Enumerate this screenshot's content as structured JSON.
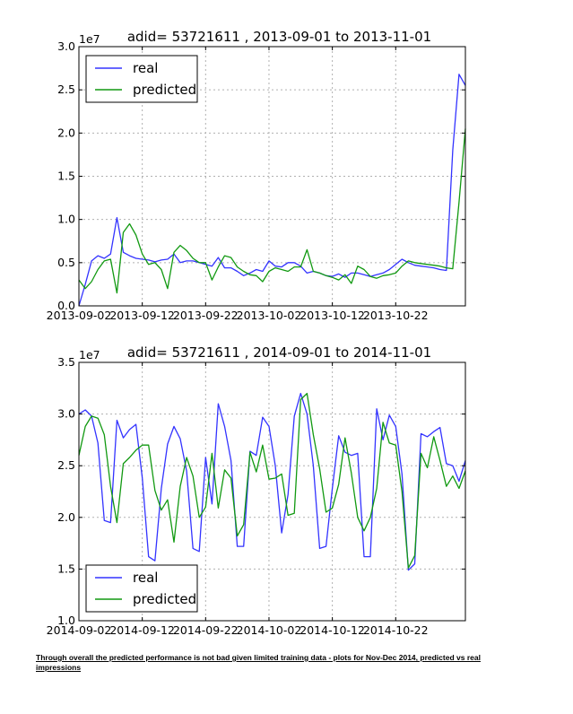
{
  "caption": "Through overall the predicted performance is not bad given limited training data - plots for Nov-Dec 2014, predicted vs real impressions",
  "colors": {
    "real": "#3333ff",
    "predicted": "#119911",
    "grid": "#b0b0b0"
  },
  "chart_data": [
    {
      "type": "line",
      "title": "adid= 53721611 , 2013-09-01 to 2013-11-01",
      "multiplier": "1e7",
      "ylim": [
        0.0,
        3.0
      ],
      "yticks": [
        "0.0",
        "0.5",
        "1.0",
        "1.5",
        "2.0",
        "2.5",
        "3.0"
      ],
      "xlim": [
        0,
        61
      ],
      "xticks": [
        {
          "x": 0,
          "label": "2013-09-02"
        },
        {
          "x": 10,
          "label": "2013-09-12"
        },
        {
          "x": 20,
          "label": "2013-09-22"
        },
        {
          "x": 30,
          "label": "2013-10-02"
        },
        {
          "x": 40,
          "label": "2013-10-12"
        },
        {
          "x": 50,
          "label": "2013-10-22"
        }
      ],
      "grid": true,
      "legend": "upper left",
      "series": [
        {
          "name": "real",
          "color": "#3333ff",
          "x": [
            0,
            1,
            2,
            3,
            4,
            5,
            6,
            7,
            8,
            9,
            10,
            11,
            12,
            13,
            14,
            15,
            16,
            17,
            18,
            19,
            20,
            21,
            22,
            23,
            24,
            25,
            26,
            27,
            28,
            29,
            30,
            31,
            32,
            33,
            34,
            35,
            36,
            37,
            38,
            39,
            40,
            41,
            42,
            43,
            44,
            45,
            46,
            47,
            48,
            49,
            50,
            51,
            52,
            53,
            54,
            55,
            56,
            57,
            58,
            59,
            60,
            61
          ],
          "values": [
            0.0,
            0.25,
            0.52,
            0.58,
            0.55,
            0.6,
            1.02,
            0.62,
            0.58,
            0.55,
            0.54,
            0.53,
            0.51,
            0.53,
            0.54,
            0.6,
            0.5,
            0.52,
            0.52,
            0.5,
            0.48,
            0.46,
            0.56,
            0.44,
            0.44,
            0.4,
            0.35,
            0.38,
            0.42,
            0.4,
            0.52,
            0.46,
            0.45,
            0.5,
            0.5,
            0.46,
            0.38,
            0.4,
            0.38,
            0.35,
            0.34,
            0.37,
            0.33,
            0.38,
            0.38,
            0.36,
            0.34,
            0.36,
            0.38,
            0.42,
            0.48,
            0.54,
            0.5,
            0.47,
            0.46,
            0.45,
            0.44,
            0.42,
            0.41,
            1.8,
            2.68,
            2.55
          ]
        },
        {
          "name": "predicted",
          "color": "#119911",
          "x": [
            0,
            1,
            2,
            3,
            4,
            5,
            6,
            7,
            8,
            9,
            10,
            11,
            12,
            13,
            14,
            15,
            16,
            17,
            18,
            19,
            20,
            21,
            22,
            23,
            24,
            25,
            26,
            27,
            28,
            29,
            30,
            31,
            32,
            33,
            34,
            35,
            36,
            37,
            38,
            39,
            40,
            41,
            42,
            43,
            44,
            45,
            46,
            47,
            48,
            49,
            50,
            51,
            52,
            53,
            54,
            55,
            56,
            57,
            58,
            59,
            60,
            61
          ],
          "values": [
            0.3,
            0.2,
            0.28,
            0.42,
            0.52,
            0.54,
            0.15,
            0.85,
            0.95,
            0.82,
            0.6,
            0.48,
            0.5,
            0.42,
            0.2,
            0.62,
            0.7,
            0.64,
            0.55,
            0.5,
            0.5,
            0.3,
            0.45,
            0.58,
            0.56,
            0.45,
            0.4,
            0.36,
            0.35,
            0.28,
            0.4,
            0.44,
            0.42,
            0.4,
            0.45,
            0.45,
            0.65,
            0.4,
            0.38,
            0.35,
            0.33,
            0.3,
            0.36,
            0.26,
            0.46,
            0.42,
            0.34,
            0.32,
            0.35,
            0.36,
            0.38,
            0.46,
            0.52,
            0.5,
            0.49,
            0.48,
            0.47,
            0.46,
            0.44,
            0.43,
            1.2,
            2.05
          ]
        }
      ]
    },
    {
      "type": "line",
      "title": "adid= 53721611 , 2014-09-01 to 2014-11-01",
      "multiplier": "1e7",
      "ylim": [
        1.0,
        3.5
      ],
      "yticks": [
        "1.0",
        "1.5",
        "2.0",
        "2.5",
        "3.0",
        "3.5"
      ],
      "xlim": [
        0,
        61
      ],
      "xticks": [
        {
          "x": 0,
          "label": "2014-09-02"
        },
        {
          "x": 10,
          "label": "2014-09-12"
        },
        {
          "x": 20,
          "label": "2014-09-22"
        },
        {
          "x": 30,
          "label": "2014-10-02"
        },
        {
          "x": 40,
          "label": "2014-10-12"
        },
        {
          "x": 50,
          "label": "2014-10-22"
        }
      ],
      "grid": true,
      "legend": "lower left",
      "series": [
        {
          "name": "real",
          "color": "#3333ff",
          "x": [
            0,
            1,
            2,
            3,
            4,
            5,
            6,
            7,
            8,
            9,
            10,
            11,
            12,
            13,
            14,
            15,
            16,
            17,
            18,
            19,
            20,
            21,
            22,
            23,
            24,
            25,
            26,
            27,
            28,
            29,
            30,
            31,
            32,
            33,
            34,
            35,
            36,
            37,
            38,
            39,
            40,
            41,
            42,
            43,
            44,
            45,
            46,
            47,
            48,
            49,
            50,
            51,
            52,
            53,
            54,
            55,
            56,
            57,
            58,
            59,
            60,
            61
          ],
          "values": [
            3.0,
            3.04,
            2.98,
            2.72,
            1.97,
            1.95,
            2.94,
            2.77,
            2.85,
            2.9,
            2.38,
            1.62,
            1.58,
            2.28,
            2.71,
            2.88,
            2.76,
            2.45,
            1.7,
            1.67,
            2.58,
            2.13,
            3.1,
            2.88,
            2.55,
            1.72,
            1.72,
            2.64,
            2.6,
            2.97,
            2.88,
            2.5,
            1.85,
            2.22,
            2.98,
            3.2,
            3.0,
            2.5,
            1.7,
            1.72,
            2.28,
            2.79,
            2.63,
            2.6,
            2.62,
            1.62,
            1.62,
            3.05,
            2.75,
            2.99,
            2.88,
            2.42,
            1.49,
            1.55,
            2.81,
            2.78,
            2.83,
            2.87,
            2.52,
            2.5,
            2.35,
            2.55
          ]
        },
        {
          "name": "predicted",
          "color": "#119911",
          "x": [
            0,
            1,
            2,
            3,
            4,
            5,
            6,
            7,
            8,
            9,
            10,
            11,
            12,
            13,
            14,
            15,
            16,
            17,
            18,
            19,
            20,
            21,
            22,
            23,
            24,
            25,
            26,
            27,
            28,
            29,
            30,
            31,
            32,
            33,
            34,
            35,
            36,
            37,
            38,
            39,
            40,
            41,
            42,
            43,
            44,
            45,
            46,
            47,
            48,
            49,
            50,
            51,
            52,
            53,
            54,
            55,
            56,
            57,
            58,
            59,
            60,
            61
          ],
          "values": [
            2.6,
            2.88,
            2.98,
            2.96,
            2.8,
            2.3,
            1.95,
            2.52,
            2.58,
            2.65,
            2.7,
            2.7,
            2.26,
            2.07,
            2.17,
            1.76,
            2.3,
            2.58,
            2.4,
            2.0,
            2.1,
            2.62,
            2.09,
            2.46,
            2.38,
            1.82,
            1.93,
            2.63,
            2.44,
            2.7,
            2.37,
            2.38,
            2.42,
            2.02,
            2.04,
            3.14,
            3.2,
            2.8,
            2.47,
            2.05,
            2.09,
            2.32,
            2.77,
            2.43,
            2.0,
            1.87,
            2.0,
            2.28,
            2.92,
            2.72,
            2.7,
            2.25,
            1.51,
            1.63,
            2.62,
            2.48,
            2.78,
            2.55,
            2.3,
            2.4,
            2.28,
            2.45
          ]
        }
      ]
    }
  ]
}
